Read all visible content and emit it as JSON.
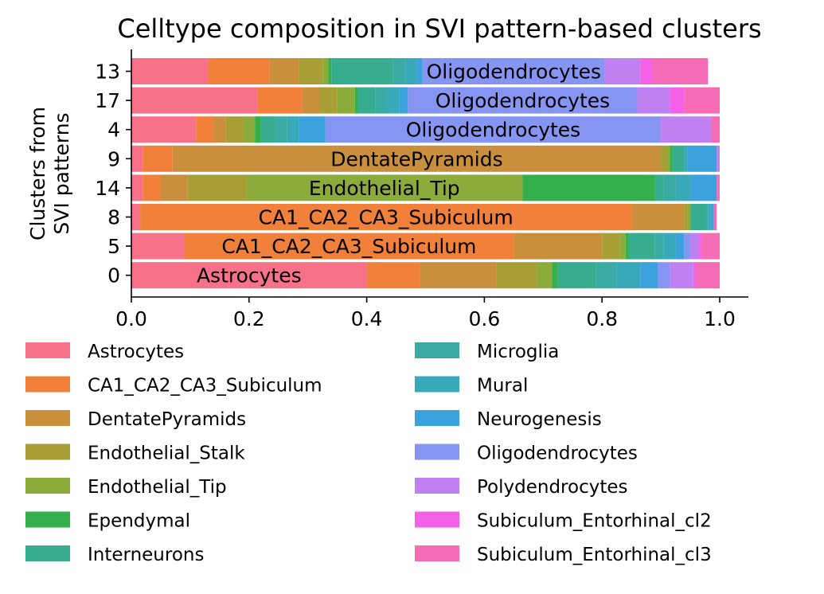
{
  "chart_data": {
    "type": "bar",
    "orientation": "horizontal",
    "stacked": true,
    "title": "Celltype composition in SVI pattern-based clusters",
    "xlabel": "",
    "ylabel": "Clusters from\nSVI patterns",
    "ylabel_lines": [
      "Clusters from",
      "SVI patterns"
    ],
    "xlim": [
      0,
      1.05
    ],
    "xticks": [
      "0.0",
      "0.2",
      "0.4",
      "0.6",
      "0.8",
      "1.0"
    ],
    "xtick_values": [
      0,
      0.2,
      0.4,
      0.6,
      0.8,
      1.0
    ],
    "categories": [
      "13",
      "17",
      "4",
      "9",
      "14",
      "8",
      "5",
      "0"
    ],
    "dominant_labels": [
      "Oligodendrocytes",
      "Oligodendrocytes",
      "Oligodendrocytes",
      "DentatePyramids",
      "Endothelial_Tip",
      "CA1_CA2_CA3_Subiculum",
      "CA1_CA2_CA3_Subiculum",
      "Astrocytes"
    ],
    "grid": false,
    "legend_position": "bottom",
    "series": [
      {
        "name": "Astrocytes",
        "color": "#f77189",
        "values": [
          0.13,
          0.215,
          0.11,
          0.02,
          0.02,
          0.015,
          0.09,
          0.4
        ]
      },
      {
        "name": "CA1_CA2_CA3_Subiculum",
        "color": "#f0803a",
        "values": [
          0.105,
          0.075,
          0.03,
          0.05,
          0.03,
          0.835,
          0.56,
          0.09
        ]
      },
      {
        "name": "DentatePyramids",
        "color": "#c98f3c",
        "values": [
          0.05,
          0.03,
          0.02,
          0.83,
          0.045,
          0.09,
          0.15,
          0.13
        ]
      },
      {
        "name": "Endothelial_Stalk",
        "color": "#a79f36",
        "values": [
          0.04,
          0.03,
          0.03,
          0.01,
          0.1,
          0.005,
          0.03,
          0.07
        ]
      },
      {
        "name": "Endothelial_Tip",
        "color": "#8bab3b",
        "values": [
          0.01,
          0.03,
          0.02,
          0.005,
          0.47,
          0.005,
          0.01,
          0.025
        ]
      },
      {
        "name": "Ependymal",
        "color": "#33b04a",
        "values": [
          0.005,
          0.005,
          0.01,
          0.005,
          0.225,
          0.0,
          0.005,
          0.01
        ]
      },
      {
        "name": "Interneurons",
        "color": "#35ad8e",
        "values": [
          0.105,
          0.03,
          0.025,
          0.02,
          0.015,
          0.025,
          0.045,
          0.065
        ]
      },
      {
        "name": "Microglia",
        "color": "#37aba4",
        "values": [
          0.02,
          0.02,
          0.02,
          0.0,
          0.02,
          0.005,
          0.015,
          0.035
        ]
      },
      {
        "name": "Mural",
        "color": "#38a9b8",
        "values": [
          0.02,
          0.02,
          0.02,
          0.005,
          0.025,
          0.005,
          0.02,
          0.04
        ]
      },
      {
        "name": "Neurogenesis",
        "color": "#3ba2de",
        "values": [
          0.01,
          0.015,
          0.045,
          0.05,
          0.045,
          0.005,
          0.015,
          0.03
        ]
      },
      {
        "name": "Oligodendrocytes",
        "color": "#8795f2",
        "values": [
          0.31,
          0.39,
          0.57,
          0.0,
          0.0,
          0.0,
          0.01,
          0.02
        ]
      },
      {
        "name": "Polydendrocytes",
        "color": "#bf81f2",
        "values": [
          0.06,
          0.055,
          0.085,
          0.005,
          0.0,
          0.0,
          0.015,
          0.04
        ]
      },
      {
        "name": "Subiculum_Entorhinal_cl2",
        "color": "#f461e6",
        "values": [
          0.02,
          0.025,
          0.0,
          0.0,
          0.0,
          0.0,
          0.005,
          0.005
        ]
      },
      {
        "name": "Subiculum_Entorhinal_cl3",
        "color": "#f66bb6",
        "values": [
          0.095,
          0.06,
          0.015,
          0.0,
          0.005,
          0.005,
          0.03,
          0.04
        ]
      }
    ]
  }
}
